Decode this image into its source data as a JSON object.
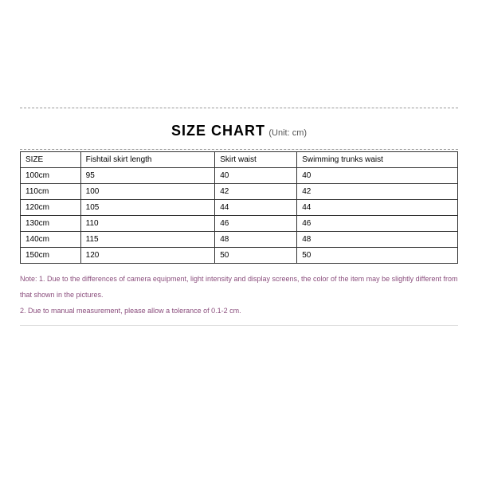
{
  "header": {
    "title": "SIZE CHART",
    "unit": "(Unit: cm)"
  },
  "table": {
    "columns": [
      "SIZE",
      "Fishtail skirt length",
      "Skirt waist",
      "Swimming trunks waist"
    ],
    "rows": [
      [
        "100cm",
        "95",
        "40",
        "40"
      ],
      [
        "110cm",
        "100",
        "42",
        "42"
      ],
      [
        "120cm",
        "105",
        "44",
        "44"
      ],
      [
        "130cm",
        "110",
        "46",
        "46"
      ],
      [
        "140cm",
        "115",
        "48",
        "48"
      ],
      [
        "150cm",
        "120",
        "50",
        "50"
      ]
    ],
    "border_color": "#333333",
    "header_fontsize": 10,
    "cell_fontsize": 10
  },
  "notes": {
    "line1": "Note: 1. Due to the differences of camera equipment, light intensity and display screens, the color of the item may be slightly different from that shown in the pictures.",
    "line2": "2. Due to manual measurement, please allow a tolerance of 0.1-2 cm.",
    "color": "#8a4d7c"
  },
  "style": {
    "background": "#ffffff",
    "dash_color": "#999999",
    "title_fontsize": 18,
    "unit_fontsize": 11
  }
}
